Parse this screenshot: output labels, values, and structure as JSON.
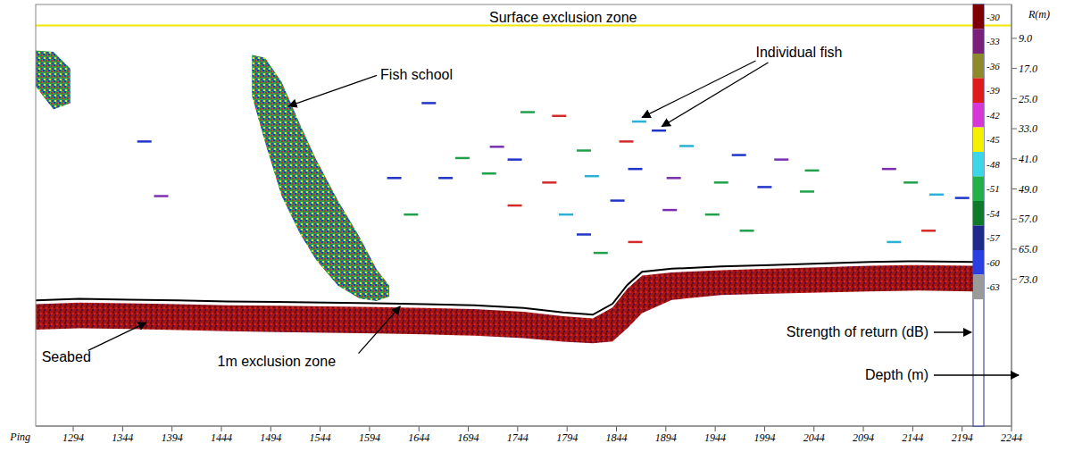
{
  "chart_data": {
    "type": "echogram",
    "x_label": "Ping",
    "y_label": "R(m)",
    "xlim": [
      1256,
      2244
    ],
    "xticks": [
      1294,
      1344,
      1394,
      1444,
      1494,
      1544,
      1594,
      1644,
      1694,
      1744,
      1794,
      1844,
      1894,
      1944,
      1994,
      2044,
      2094,
      2144,
      2194,
      2244
    ],
    "ylim": [
      0,
      112
    ],
    "yticks": [
      {
        "value": 9,
        "label": "9.0"
      },
      {
        "value": 17,
        "label": "17.0"
      },
      {
        "value": 25,
        "label": "25.0"
      },
      {
        "value": 33,
        "label": "33.0"
      },
      {
        "value": 41,
        "label": "41.0"
      },
      {
        "value": 49,
        "label": "49.0"
      },
      {
        "value": 57,
        "label": "57.0"
      },
      {
        "value": 65,
        "label": "65.0"
      },
      {
        "value": 73,
        "label": "73.0"
      }
    ],
    "surface_exclusion": {
      "label": "Surface exclusion zone",
      "depth": 5.6,
      "color": "#f2e600"
    },
    "seabed": {
      "x": [
        1256,
        1300,
        1350,
        1400,
        1450,
        1500,
        1550,
        1600,
        1650,
        1700,
        1750,
        1790,
        1820,
        1840,
        1855,
        1870,
        1900,
        1950,
        2000,
        2050,
        2100,
        2150,
        2205
      ],
      "exclusion_line": [
        78.6,
        78.2,
        78.4,
        78.6,
        78.9,
        79.0,
        79.2,
        79.4,
        79.6,
        79.9,
        80.6,
        81.8,
        82.4,
        79.5,
        74.5,
        71.0,
        70.2,
        69.6,
        69.2,
        68.8,
        68.4,
        68.2,
        68.4
      ],
      "echo_top": [
        79.6,
        79.2,
        79.4,
        79.6,
        79.9,
        80.0,
        80.2,
        80.4,
        80.6,
        80.9,
        81.6,
        82.8,
        83.4,
        80.5,
        75.5,
        72.0,
        71.2,
        70.6,
        70.2,
        69.8,
        69.4,
        69.2,
        69.4
      ],
      "echo_bottom": [
        86.4,
        86.0,
        86.2,
        86.5,
        86.8,
        87.0,
        87.2,
        87.4,
        87.6,
        88.0,
        88.6,
        89.6,
        90.0,
        89.5,
        86.0,
        82.0,
        78.5,
        77.2,
        76.8,
        76.5,
        76.2,
        76.0,
        76.2
      ],
      "color": "#a01515",
      "line_color": "#000000"
    },
    "fish_school": {
      "x": [
        1475,
        1488,
        1505,
        1523,
        1540,
        1562,
        1584,
        1601,
        1614
      ],
      "top": [
        13.4,
        14.1,
        20.6,
        31.5,
        41.2,
        52.1,
        61.8,
        70.3,
        74.7
      ],
      "bottom": [
        24.3,
        36.4,
        50.9,
        60.6,
        67.9,
        74.7,
        78.1,
        78.8,
        77.6
      ]
    },
    "partial_school": {
      "x": [
        1256,
        1274,
        1291
      ],
      "top": [
        12.2,
        12.6,
        17.0
      ],
      "bottom": [
        21.8,
        27.9,
        26.2
      ]
    },
    "individual_fish": {
      "x": [
        1654,
        1754,
        1786,
        1867,
        1887,
        1723,
        1688,
        1741,
        1811,
        1854,
        1915,
        1968,
        2011,
        2042,
        1671,
        1715,
        1776,
        1819,
        1863,
        1902,
        1950,
        1994,
        2037,
        1741,
        1793,
        1845,
        1898,
        1941,
        1811,
        1828,
        1863,
        2168,
        2194,
        2120,
        2142,
        1619,
        1636,
        2160,
        2125,
        1366,
        1383,
        1976
      ],
      "depth": [
        26.2,
        28.6,
        29.6,
        31.1,
        33.5,
        37.8,
        40.8,
        41.2,
        38.8,
        36.4,
        37.6,
        40.0,
        41.2,
        44.1,
        46.1,
        44.9,
        47.3,
        45.6,
        43.7,
        46.1,
        47.3,
        48.5,
        49.7,
        53.4,
        55.8,
        52.1,
        54.6,
        55.8,
        61.1,
        66.0,
        63.1,
        50.5,
        51.4,
        43.7,
        47.3,
        46.1,
        55.8,
        60.1,
        63.1,
        36.4,
        50.9,
        60.1
      ],
      "colors": [
        "#1f35c8",
        "#21a04a",
        "#d42a2a",
        "#2bb0d8",
        "#1f35c8",
        "#7a2fb0",
        "#21a04a",
        "#1f35c8",
        "#21a04a",
        "#d42a2a",
        "#2bb0d8",
        "#1f35c8",
        "#7a2fb0",
        "#21a04a",
        "#1f35c8",
        "#21a04a",
        "#d42a2a",
        "#2bb0d8",
        "#1f35c8",
        "#7a2fb0",
        "#21a04a",
        "#1f35c8",
        "#21a04a",
        "#d42a2a",
        "#2bb0d8",
        "#1f35c8",
        "#7a2fb0",
        "#21a04a",
        "#1f35c8",
        "#21a04a",
        "#d42a2a",
        "#2bb0d8",
        "#1f35c8",
        "#7a2fb0",
        "#21a04a",
        "#1f35c8",
        "#21a04a",
        "#d42a2a",
        "#2bb0d8",
        "#1f35c8",
        "#7a2fb0",
        "#21a04a"
      ]
    },
    "annotations": {
      "fish_school": "Fish school",
      "individual_fish": "Individual fish",
      "seabed": "Seabed",
      "exclusion_zone": "1m exclusion zone",
      "strength": "Strength of return (dB)",
      "depth": "Depth (m)"
    },
    "colorbar": {
      "ticks": [
        -30,
        -33,
        -36,
        -39,
        -42,
        -45,
        -48,
        -51,
        -54,
        -57,
        -60,
        -63
      ],
      "colors": [
        "#7f0000",
        "#7a1f7a",
        "#8c8a2a",
        "#e01b1b",
        "#d637d6",
        "#f5f000",
        "#3dd6e6",
        "#21b04a",
        "#0f7a2a",
        "#1f2a8c",
        "#2a3fe0",
        "#9a9a9a"
      ]
    }
  }
}
